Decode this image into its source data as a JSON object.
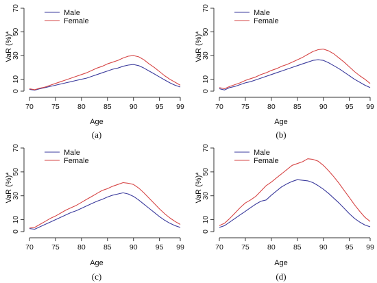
{
  "colors": {
    "male": "#3a3a9c",
    "female": "#d64545",
    "axis": "#333333"
  },
  "panels": [
    {
      "caption": "(a)",
      "xlabel": "Age",
      "ylabel": "VaR (%)*"
    },
    {
      "caption": "(b)",
      "xlabel": "Age",
      "ylabel": "VaR (%)*"
    },
    {
      "caption": "(c)",
      "xlabel": "Age",
      "ylabel": "VaR (%)*"
    },
    {
      "caption": "(d)",
      "xlabel": "Age",
      "ylabel": "VaR (%)*"
    }
  ],
  "chart_data": [
    {
      "type": "line",
      "caption": "(a)",
      "xlabel": "Age",
      "ylabel": "VaR (%)*",
      "xlim": [
        70,
        99
      ],
      "ylim": [
        0,
        70
      ],
      "xticks": [
        70,
        75,
        80,
        85,
        90,
        95,
        99
      ],
      "yticks": [
        0,
        10,
        30,
        50,
        70
      ],
      "legend": "top-left",
      "x": [
        70,
        71,
        72,
        73,
        74,
        75,
        76,
        77,
        78,
        79,
        80,
        81,
        82,
        83,
        84,
        85,
        86,
        87,
        88,
        89,
        90,
        91,
        92,
        93,
        94,
        95,
        96,
        97,
        98,
        99
      ],
      "series": [
        {
          "name": "Male",
          "values": [
            1.5,
            0.8,
            2,
            3,
            4,
            5,
            6,
            7,
            8,
            9,
            10,
            11,
            12.5,
            14,
            15.5,
            17,
            18.5,
            19.5,
            21,
            22,
            22.5,
            21.5,
            19.5,
            17,
            14.5,
            12,
            9.5,
            7,
            5,
            3.5
          ]
        },
        {
          "name": "Female",
          "values": [
            2,
            1.2,
            2.5,
            3.5,
            5,
            6.5,
            8,
            9.5,
            11,
            12.5,
            14,
            15.5,
            17.5,
            19.5,
            21,
            23,
            24.5,
            26,
            28,
            29.5,
            30,
            29,
            26.5,
            23,
            20,
            16.5,
            13,
            10,
            7.5,
            5
          ]
        }
      ]
    },
    {
      "type": "line",
      "caption": "(b)",
      "xlabel": "Age",
      "ylabel": "VaR (%)*",
      "xlim": [
        70,
        99
      ],
      "ylim": [
        0,
        70
      ],
      "xticks": [
        70,
        75,
        80,
        85,
        90,
        95,
        99
      ],
      "yticks": [
        0,
        10,
        30,
        50,
        70
      ],
      "legend": "top-left",
      "x": [
        70,
        71,
        72,
        73,
        74,
        75,
        76,
        77,
        78,
        79,
        80,
        81,
        82,
        83,
        84,
        85,
        86,
        87,
        88,
        89,
        90,
        91,
        92,
        93,
        94,
        95,
        96,
        97,
        98,
        99
      ],
      "series": [
        {
          "name": "Male",
          "values": [
            2,
            1,
            3,
            4,
            5.5,
            7,
            8,
            9.5,
            11,
            12.5,
            14,
            15.5,
            17,
            18.5,
            20,
            21.5,
            23,
            24.5,
            26,
            26.5,
            26,
            24,
            21.5,
            19,
            16,
            13,
            10,
            7.5,
            5,
            3
          ]
        },
        {
          "name": "Female",
          "values": [
            3,
            2,
            4,
            5.5,
            7,
            9,
            10.5,
            12,
            14,
            15.5,
            17.5,
            19,
            21,
            22.5,
            24.5,
            26.5,
            28.5,
            31,
            33.5,
            35,
            35.5,
            34,
            31.5,
            28,
            24.5,
            20.5,
            16.5,
            13,
            10,
            6.5
          ]
        }
      ]
    },
    {
      "type": "line",
      "caption": "(c)",
      "xlabel": "Age",
      "ylabel": "VaR (%)*",
      "xlim": [
        70,
        99
      ],
      "ylim": [
        0,
        70
      ],
      "xticks": [
        70,
        75,
        80,
        85,
        90,
        95,
        99
      ],
      "yticks": [
        0,
        10,
        30,
        50,
        70
      ],
      "legend": "top-left",
      "x": [
        70,
        71,
        72,
        73,
        74,
        75,
        76,
        77,
        78,
        79,
        80,
        81,
        82,
        83,
        84,
        85,
        86,
        87,
        88,
        89,
        90,
        91,
        92,
        93,
        94,
        95,
        96,
        97,
        98,
        99
      ],
      "series": [
        {
          "name": "Male",
          "values": [
            2.5,
            2,
            4,
            6,
            8,
            10,
            12,
            14,
            16,
            17.5,
            19.5,
            21.5,
            23.5,
            25.5,
            27,
            29,
            30.5,
            31.5,
            32.5,
            31.5,
            29.5,
            26.5,
            23,
            19.5,
            16,
            12.5,
            9.5,
            7,
            5,
            3.5
          ]
        },
        {
          "name": "Female",
          "values": [
            3,
            3.5,
            6,
            8.5,
            11,
            13,
            15.5,
            18,
            20,
            22,
            24.5,
            27,
            29.5,
            32,
            34.5,
            36,
            38,
            39.5,
            41,
            40.5,
            39.5,
            36.5,
            32.5,
            28,
            23.5,
            19,
            15,
            11.5,
            8.5,
            6
          ]
        }
      ]
    },
    {
      "type": "line",
      "caption": "(d)",
      "xlabel": "Age",
      "ylabel": "VaR (%)*",
      "xlim": [
        70,
        99
      ],
      "ylim": [
        0,
        70
      ],
      "xticks": [
        70,
        75,
        80,
        85,
        90,
        95,
        99
      ],
      "yticks": [
        0,
        10,
        30,
        50,
        70
      ],
      "legend": "top-left",
      "x": [
        70,
        71,
        72,
        73,
        74,
        75,
        76,
        77,
        78,
        79,
        80,
        81,
        82,
        83,
        84,
        85,
        86,
        87,
        88,
        89,
        90,
        91,
        92,
        93,
        94,
        95,
        96,
        97,
        98,
        99
      ],
      "series": [
        {
          "name": "Male",
          "values": [
            3.5,
            5,
            8,
            11,
            14,
            17,
            20,
            23,
            25.5,
            26.5,
            30.5,
            34,
            37.5,
            40,
            42,
            43.5,
            43,
            42.5,
            41,
            38.5,
            35.5,
            32,
            28,
            24,
            19.5,
            15,
            11,
            8,
            5.5,
            4
          ]
        },
        {
          "name": "Female",
          "values": [
            5,
            7,
            11,
            15.5,
            20,
            24,
            26.5,
            29.5,
            34,
            38.5,
            41.5,
            45,
            48.5,
            52,
            55.5,
            57,
            58.5,
            61,
            60.5,
            59,
            55.5,
            51,
            46,
            40.5,
            34.5,
            28.5,
            22.5,
            17,
            12,
            8.5
          ]
        }
      ]
    }
  ]
}
